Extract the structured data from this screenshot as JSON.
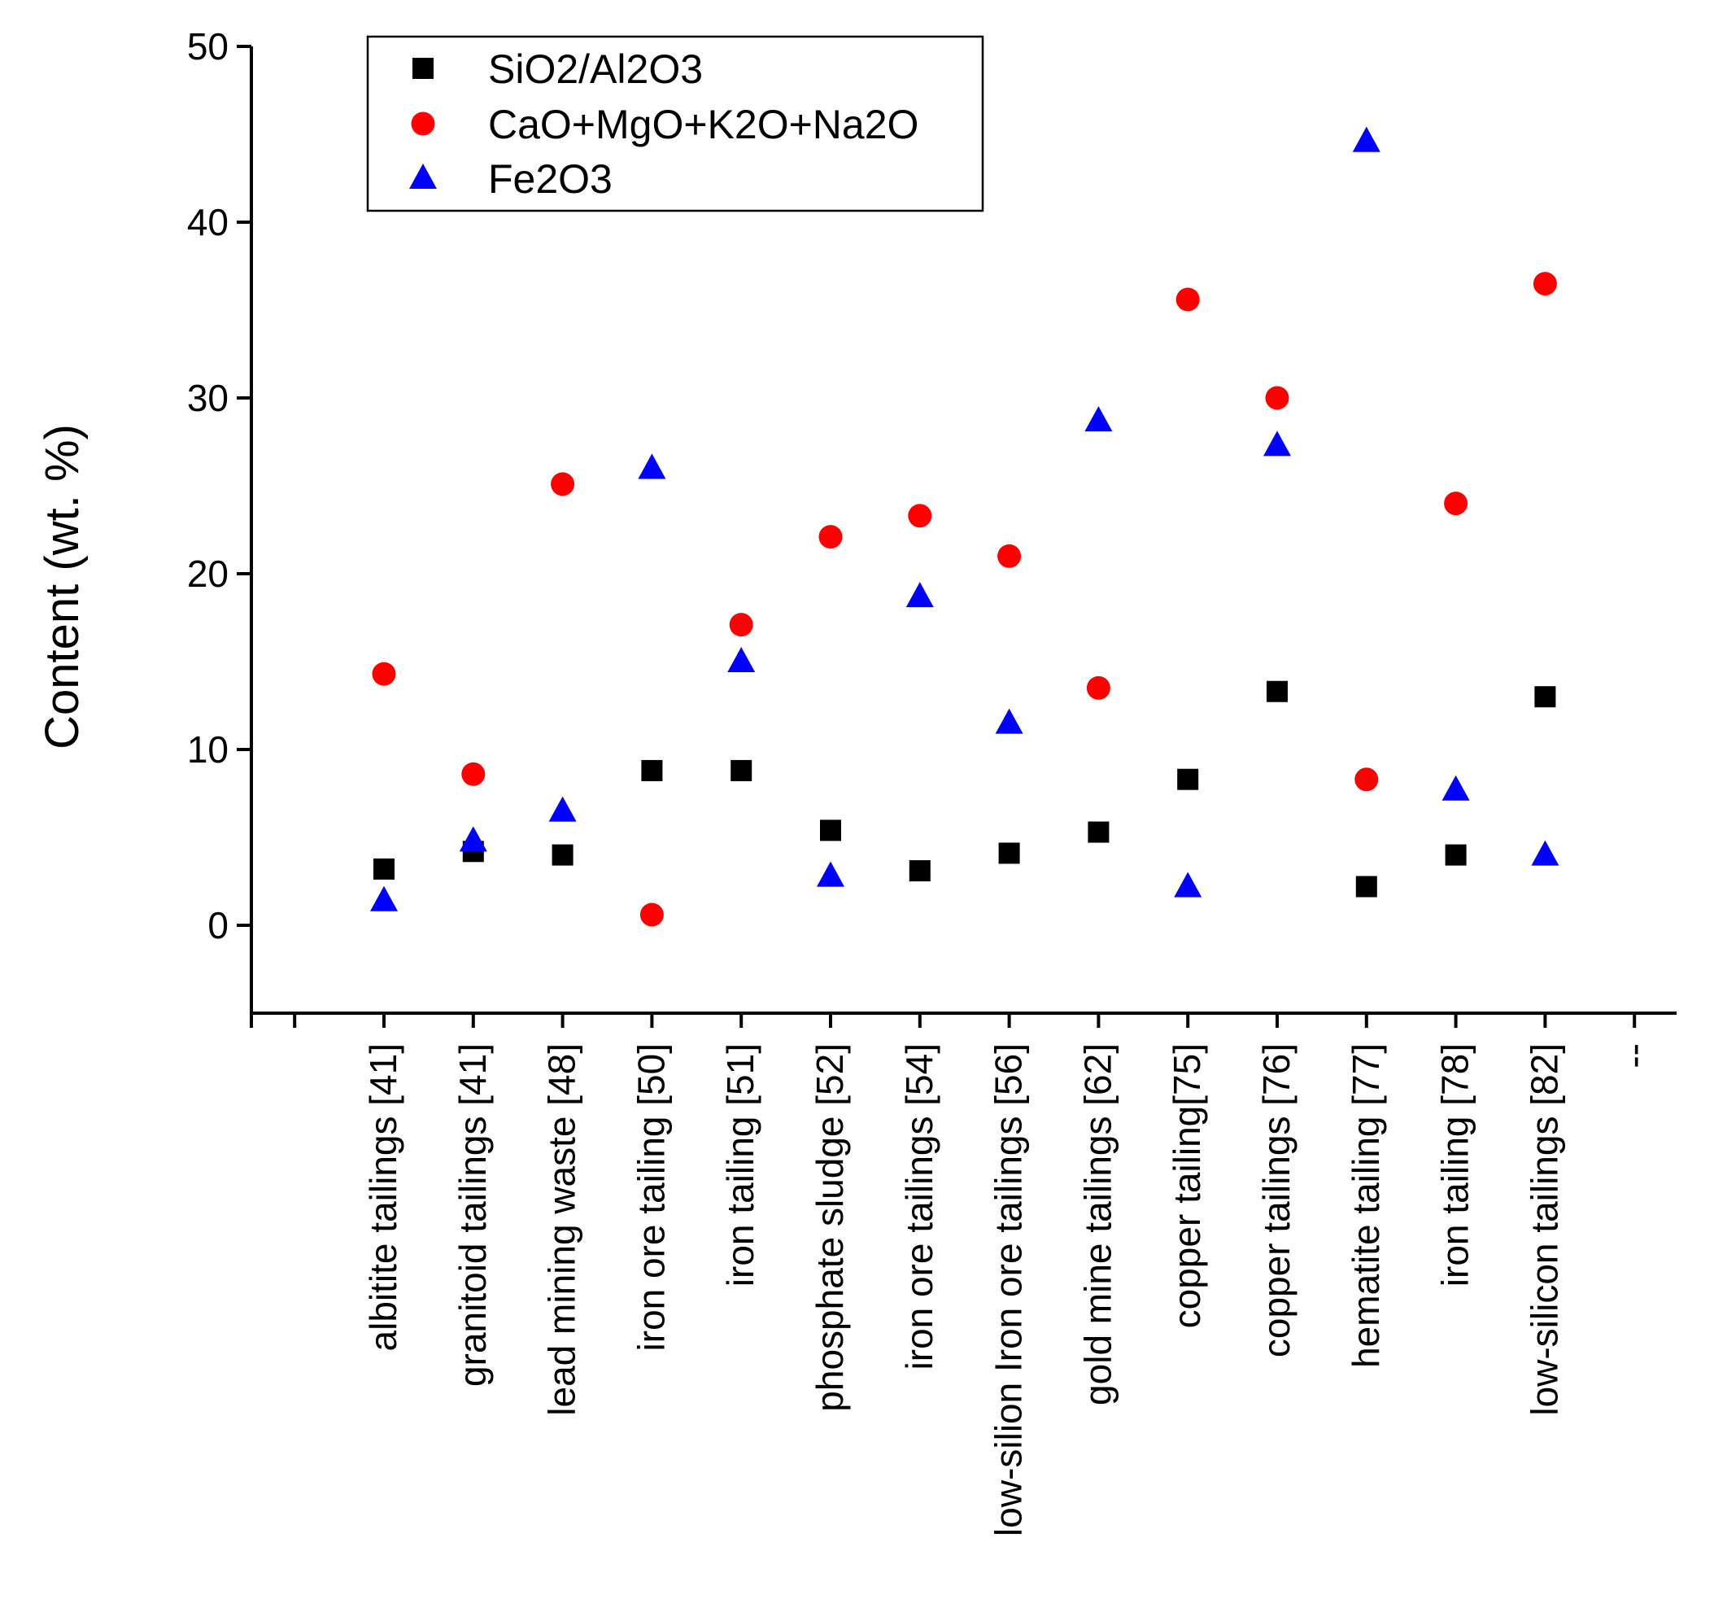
{
  "chart_data": {
    "type": "scatter",
    "title": "",
    "xlabel": "",
    "ylabel": "Content  (wt. %)",
    "ylim": [
      -5,
      50
    ],
    "yticks": [
      0,
      10,
      20,
      30,
      40,
      50
    ],
    "grid": false,
    "legend_position": "top-left",
    "categories": [
      "albitite tailings [41]",
      "granitoid tailings [41]",
      "lead mining waste [48]",
      "iron ore tailing [50]",
      "iron tailing [51]",
      "phosphate sludge [52]",
      "iron ore tailings  [54]",
      "low-silion Iron ore tailings  [56]",
      "gold mine tailings [62]",
      "copper  tailing[75]",
      "copper tailings [76]",
      "hematite tailing [77]",
      "iron tailing [78]",
      "low-silicon tailings [82]",
      "--"
    ],
    "series": [
      {
        "name": "SiO2/Al2O3",
        "marker": "square",
        "color": "#000000",
        "values": [
          3.2,
          4.2,
          4.0,
          8.8,
          8.8,
          5.4,
          3.1,
          4.1,
          5.3,
          8.3,
          13.3,
          2.2,
          4.0,
          13.0,
          null
        ]
      },
      {
        "name": "CaO+MgO+K2O+Na2O",
        "marker": "circle",
        "color": "#ff0000",
        "values": [
          14.3,
          8.6,
          25.1,
          0.6,
          17.1,
          22.1,
          23.3,
          21.0,
          13.5,
          35.6,
          30.0,
          8.3,
          24.0,
          36.5,
          null
        ]
      },
      {
        "name": "Fe2O3",
        "marker": "triangle",
        "color": "#0000ff",
        "values": [
          1.4,
          4.8,
          6.5,
          26.0,
          15.0,
          2.8,
          18.7,
          11.5,
          28.7,
          2.2,
          27.3,
          44.6,
          7.7,
          4.0,
          null
        ]
      }
    ]
  }
}
